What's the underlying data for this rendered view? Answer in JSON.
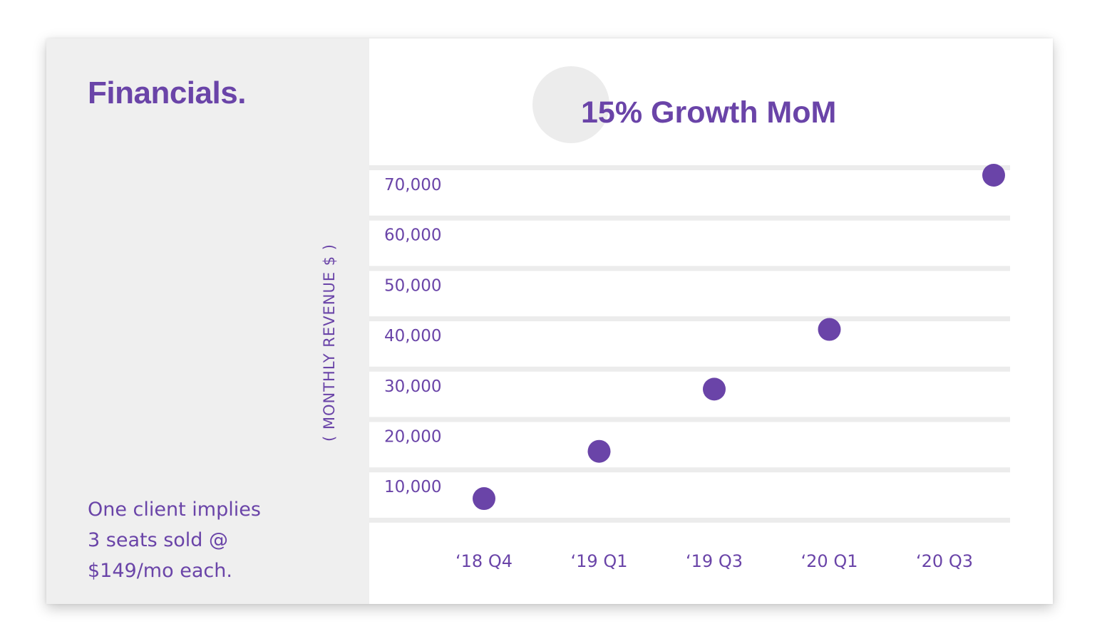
{
  "slide": {
    "heading": "Financials.",
    "note_lines": [
      "One client implies",
      "3 seats sold @",
      "$149/mo each."
    ]
  },
  "colors": {
    "accent": "#6a44a8",
    "panel": "#efefef",
    "grid": "#ececec"
  },
  "chart_data": {
    "type": "scatter",
    "title": "15% Growth MoM",
    "xlabel": "",
    "ylabel": "( MONTHLY REVENUE $ )",
    "categories": [
      "‘18 Q4",
      "‘19 Q1",
      "‘19 Q3",
      "‘20 Q1",
      "‘20 Q3"
    ],
    "ytick_labels": [
      "70,000",
      "60,000",
      "50,000",
      "40,000",
      "30,000",
      "20,000",
      "10,000"
    ],
    "ylim": [
      0,
      70000
    ],
    "grid": true,
    "legend": "none",
    "series": [
      {
        "x": [
          "‘18 Q4",
          "‘19 Q1",
          "‘19 Q3",
          "‘20 Q1",
          "‘20 Q3"
        ],
        "values": [
          4000,
          13500,
          26000,
          38000,
          69000
        ]
      }
    ]
  }
}
